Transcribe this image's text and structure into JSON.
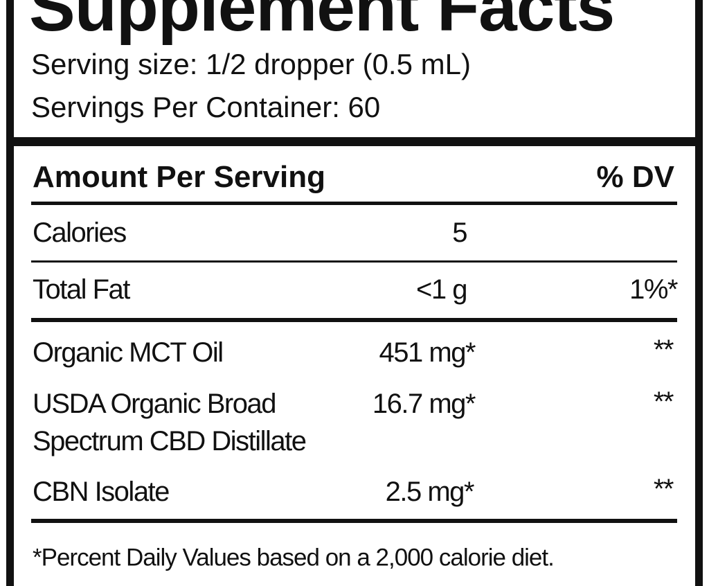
{
  "header": {
    "title": "Supplement Facts",
    "serving_size": "Serving size: 1/2 dropper (0.5 mL)",
    "servings_per_container": "Servings Per Container: 60"
  },
  "table": {
    "amount_header": "Amount Per Serving",
    "dv_header": "% DV",
    "rows": [
      {
        "name": "Calories",
        "amount": "5"
      },
      {
        "name": "Total Fat",
        "amount": "<1 g",
        "dv": "1%*"
      },
      {
        "name": "Organic MCT Oil",
        "amount": "451 mg*",
        "dv": "**"
      },
      {
        "name": "USDA Organic Broad",
        "name_line2": "Spectrum CBD Distillate",
        "amount": "16.7 mg*",
        "dv": "**"
      },
      {
        "name": "CBN Isolate",
        "amount": "2.5 mg*",
        "dv": "**"
      }
    ]
  },
  "footnote": "*Percent Daily Values based on a 2,000 calorie diet."
}
